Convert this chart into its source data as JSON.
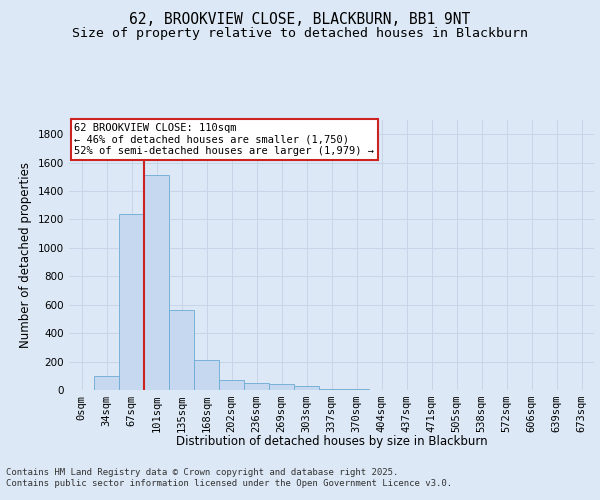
{
  "title_line1": "62, BROOKVIEW CLOSE, BLACKBURN, BB1 9NT",
  "title_line2": "Size of property relative to detached houses in Blackburn",
  "xlabel": "Distribution of detached houses by size in Blackburn",
  "ylabel": "Number of detached properties",
  "categories": [
    "0sqm",
    "34sqm",
    "67sqm",
    "101sqm",
    "135sqm",
    "168sqm",
    "202sqm",
    "236sqm",
    "269sqm",
    "303sqm",
    "337sqm",
    "370sqm",
    "404sqm",
    "437sqm",
    "471sqm",
    "505sqm",
    "538sqm",
    "572sqm",
    "606sqm",
    "639sqm",
    "673sqm"
  ],
  "values": [
    0,
    100,
    1240,
    1510,
    560,
    210,
    70,
    50,
    40,
    30,
    10,
    5,
    2,
    0,
    0,
    0,
    0,
    0,
    0,
    0,
    0
  ],
  "bar_color": "#c5d8f0",
  "bar_edge_color": "#6aaad4",
  "vline_color": "#cc2222",
  "vline_x_index": 3,
  "annotation_text": "62 BROOKVIEW CLOSE: 110sqm\n← 46% of detached houses are smaller (1,750)\n52% of semi-detached houses are larger (1,979) →",
  "annotation_box_facecolor": "#ffffff",
  "annotation_box_edgecolor": "#cc2222",
  "ylim": [
    0,
    1900
  ],
  "yticks": [
    0,
    200,
    400,
    600,
    800,
    1000,
    1200,
    1400,
    1600,
    1800
  ],
  "grid_color": "#c8d4e8",
  "bg_color": "#dce8f5",
  "fig_bg_color": "#dce8f5",
  "footer_text": "Contains HM Land Registry data © Crown copyright and database right 2025.\nContains public sector information licensed under the Open Government Licence v3.0.",
  "title_fontsize": 10.5,
  "subtitle_fontsize": 9.5,
  "axis_label_fontsize": 8.5,
  "tick_fontsize": 7.5,
  "annotation_fontsize": 7.5,
  "footer_fontsize": 6.5
}
